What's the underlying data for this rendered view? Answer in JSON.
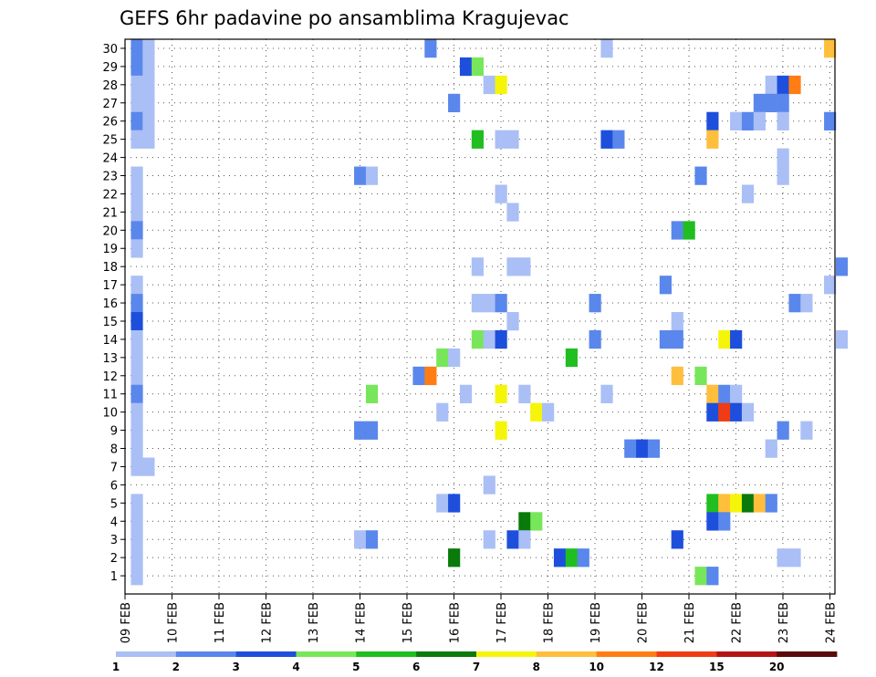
{
  "chart_data": {
    "type": "heatmap",
    "title": "GEFS 6hr padavine po ansamblima Kragujevac",
    "x_tick_labels": [
      "09 FEB",
      "10 FEB",
      "11 FEB",
      "12 FEB",
      "13 FEB",
      "14 FEB",
      "15 FEB",
      "16 FEB",
      "17 FEB",
      "18 FEB",
      "19 FEB",
      "20 FEB",
      "21 FEB",
      "22 FEB",
      "23 FEB",
      "24 FEB"
    ],
    "y_tick_labels": [
      "1",
      "2",
      "3",
      "4",
      "5",
      "6",
      "7",
      "8",
      "9",
      "10",
      "11",
      "12",
      "13",
      "14",
      "15",
      "16",
      "17",
      "18",
      "19",
      "20",
      "21",
      "22",
      "23",
      "24",
      "25",
      "26",
      "27",
      "28",
      "29",
      "30"
    ],
    "xlim_days": [
      0,
      15.3
    ],
    "ylim_members": [
      0,
      30
    ],
    "time_step_hours": 6,
    "grid": "dotted",
    "colorbar": {
      "labels": [
        "1",
        "2",
        "3",
        "4",
        "5",
        "6",
        "7",
        "8",
        "10",
        "12",
        "15",
        "20"
      ],
      "colors": [
        "#aabff5",
        "#5a87eb",
        "#1e4fdc",
        "#78e65a",
        "#20be20",
        "#0a7a0a",
        "#f5f50a",
        "#ffbe3c",
        "#ff7d14",
        "#f03c14",
        "#b41414",
        "#5a0a0a"
      ]
    },
    "cells": [
      [
        0.25,
        30,
        2
      ],
      [
        0.5,
        30,
        1
      ],
      [
        6.5,
        30,
        2
      ],
      [
        10.25,
        30,
        1
      ],
      [
        15,
        30,
        8
      ],
      [
        0.25,
        29,
        2
      ],
      [
        0.5,
        29,
        1
      ],
      [
        7.25,
        29,
        3
      ],
      [
        7.5,
        29,
        4
      ],
      [
        0.25,
        28,
        1
      ],
      [
        0.5,
        28,
        1
      ],
      [
        7.75,
        28,
        1
      ],
      [
        8,
        28,
        7
      ],
      [
        13.75,
        28,
        1
      ],
      [
        14,
        28,
        3
      ],
      [
        14.25,
        28,
        9
      ],
      [
        0.25,
        27,
        1
      ],
      [
        0.5,
        27,
        1
      ],
      [
        7,
        27,
        2
      ],
      [
        13.5,
        27,
        2
      ],
      [
        13.75,
        27,
        2
      ],
      [
        14,
        27,
        2
      ],
      [
        0.25,
        26,
        2
      ],
      [
        0.5,
        26,
        1
      ],
      [
        12.5,
        26,
        3
      ],
      [
        13,
        26,
        1
      ],
      [
        13.25,
        26,
        2
      ],
      [
        13.5,
        26,
        1
      ],
      [
        14,
        26,
        1
      ],
      [
        15,
        26,
        2
      ],
      [
        0.25,
        25,
        1
      ],
      [
        0.5,
        25,
        1
      ],
      [
        7.5,
        25,
        5
      ],
      [
        8,
        25,
        1
      ],
      [
        8.25,
        25,
        1
      ],
      [
        10.25,
        25,
        3
      ],
      [
        10.5,
        25,
        2
      ],
      [
        12.5,
        25,
        8
      ],
      [
        14,
        24,
        1
      ],
      [
        0.25,
        23,
        1
      ],
      [
        5,
        23,
        2
      ],
      [
        5.25,
        23,
        1
      ],
      [
        12.25,
        23,
        2
      ],
      [
        14,
        23,
        1
      ],
      [
        0.25,
        22,
        1
      ],
      [
        8,
        22,
        1
      ],
      [
        13.25,
        22,
        1
      ],
      [
        0.25,
        21,
        1
      ],
      [
        8.25,
        21,
        1
      ],
      [
        0.25,
        20,
        2
      ],
      [
        11.75,
        20,
        2
      ],
      [
        12,
        20,
        5
      ],
      [
        0.25,
        19,
        1
      ],
      [
        7.5,
        18,
        1
      ],
      [
        8.25,
        18,
        1
      ],
      [
        8.5,
        18,
        1
      ],
      [
        15.25,
        18,
        2
      ],
      [
        0.25,
        17,
        1
      ],
      [
        11.5,
        17,
        2
      ],
      [
        15,
        17,
        1
      ],
      [
        0.25,
        16,
        2
      ],
      [
        7.5,
        16,
        1
      ],
      [
        7.75,
        16,
        1
      ],
      [
        8,
        16,
        2
      ],
      [
        10,
        16,
        2
      ],
      [
        14.25,
        16,
        2
      ],
      [
        14.5,
        16,
        1
      ],
      [
        0.25,
        15,
        3
      ],
      [
        8.25,
        15,
        1
      ],
      [
        11.75,
        15,
        1
      ],
      [
        0.25,
        14,
        1
      ],
      [
        7.5,
        14,
        4
      ],
      [
        7.75,
        14,
        1
      ],
      [
        8,
        14,
        3
      ],
      [
        10,
        14,
        2
      ],
      [
        11.5,
        14,
        2
      ],
      [
        11.75,
        14,
        2
      ],
      [
        12.75,
        14,
        7
      ],
      [
        13,
        14,
        3
      ],
      [
        15.25,
        14,
        1
      ],
      [
        0.25,
        13,
        1
      ],
      [
        6.75,
        13,
        4
      ],
      [
        7,
        13,
        1
      ],
      [
        9.5,
        13,
        5
      ],
      [
        0.25,
        12,
        1
      ],
      [
        6.25,
        12,
        2
      ],
      [
        6.5,
        12,
        9
      ],
      [
        11.75,
        12,
        8
      ],
      [
        12.25,
        12,
        4
      ],
      [
        0.25,
        11,
        2
      ],
      [
        5.25,
        11,
        4
      ],
      [
        7.25,
        11,
        1
      ],
      [
        8,
        11,
        7
      ],
      [
        8.5,
        11,
        1
      ],
      [
        10.25,
        11,
        1
      ],
      [
        12.5,
        11,
        8
      ],
      [
        12.75,
        11,
        2
      ],
      [
        13,
        11,
        1
      ],
      [
        0.25,
        10,
        1
      ],
      [
        6.75,
        10,
        1
      ],
      [
        8.75,
        10,
        7
      ],
      [
        9,
        10,
        1
      ],
      [
        12.5,
        10,
        3
      ],
      [
        12.75,
        10,
        10
      ],
      [
        13,
        10,
        3
      ],
      [
        13.25,
        10,
        1
      ],
      [
        0.25,
        9,
        1
      ],
      [
        5,
        9,
        2
      ],
      [
        5.25,
        9,
        2
      ],
      [
        8,
        9,
        7
      ],
      [
        14,
        9,
        2
      ],
      [
        14.5,
        9,
        1
      ],
      [
        0.25,
        8,
        1
      ],
      [
        10.75,
        8,
        2
      ],
      [
        11,
        8,
        3
      ],
      [
        11.25,
        8,
        2
      ],
      [
        13.75,
        8,
        1
      ],
      [
        0.25,
        7,
        1
      ],
      [
        0.5,
        7,
        1
      ],
      [
        7.75,
        6,
        1
      ],
      [
        0.25,
        5,
        1
      ],
      [
        6.75,
        5,
        1
      ],
      [
        7,
        5,
        3
      ],
      [
        12.5,
        5,
        5
      ],
      [
        12.75,
        5,
        8
      ],
      [
        13,
        5,
        7
      ],
      [
        13.25,
        5,
        6
      ],
      [
        13.5,
        5,
        8
      ],
      [
        13.75,
        5,
        2
      ],
      [
        0.25,
        4,
        1
      ],
      [
        8.5,
        4,
        6
      ],
      [
        8.75,
        4,
        4
      ],
      [
        12.5,
        4,
        3
      ],
      [
        12.75,
        4,
        2
      ],
      [
        0.25,
        3,
        1
      ],
      [
        5,
        3,
        1
      ],
      [
        5.25,
        3,
        2
      ],
      [
        7.75,
        3,
        1
      ],
      [
        8.25,
        3,
        3
      ],
      [
        8.5,
        3,
        1
      ],
      [
        11.75,
        3,
        3
      ],
      [
        0.25,
        2,
        1
      ],
      [
        7,
        2,
        6
      ],
      [
        9.25,
        2,
        3
      ],
      [
        9.5,
        2,
        5
      ],
      [
        9.75,
        2,
        2
      ],
      [
        14,
        2,
        1
      ],
      [
        14.25,
        2,
        1
      ],
      [
        0.25,
        1,
        1
      ],
      [
        12.25,
        1,
        4
      ],
      [
        12.5,
        1,
        2
      ]
    ]
  }
}
